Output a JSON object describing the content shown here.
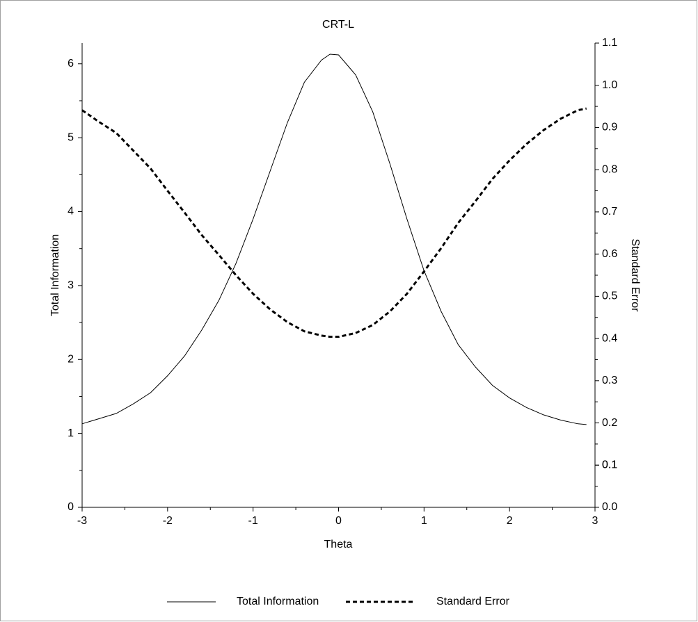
{
  "chart_data": {
    "type": "line",
    "title": "CRT-L",
    "x_label": "Theta",
    "y_label": "Total Information",
    "y2_label": "Standard Error",
    "x": [
      -3,
      -2.8,
      -2.6,
      -2.4,
      -2.2,
      -2,
      -1.8,
      -1.6,
      -1.4,
      -1.2,
      -1,
      -0.8,
      -0.6,
      -0.4,
      -0.2,
      -0.1,
      0,
      0.2,
      0.4,
      0.6,
      0.8,
      1,
      1.2,
      1.4,
      1.6,
      1.8,
      2,
      2.2,
      2.4,
      2.6,
      2.8,
      2.9
    ],
    "series": [
      {
        "name": "Total Information",
        "color": "#000000",
        "dashed": false,
        "axis": "y",
        "values": [
          1.13,
          1.2,
          1.27,
          1.4,
          1.55,
          1.78,
          2.05,
          2.4,
          2.8,
          3.3,
          3.9,
          4.55,
          5.2,
          5.75,
          6.05,
          6.13,
          6.12,
          5.85,
          5.35,
          4.65,
          3.9,
          3.2,
          2.65,
          2.2,
          1.9,
          1.65,
          1.48,
          1.35,
          1.25,
          1.18,
          1.13,
          1.12
        ]
      },
      {
        "name": "Standard Error",
        "color": "#000000",
        "dashed": true,
        "axis": "y2",
        "values": [
          0.941,
          0.913,
          0.887,
          0.845,
          0.803,
          0.75,
          0.698,
          0.645,
          0.598,
          0.55,
          0.506,
          0.469,
          0.439,
          0.417,
          0.407,
          0.404,
          0.404,
          0.413,
          0.432,
          0.464,
          0.506,
          0.559,
          0.614,
          0.674,
          0.725,
          0.778,
          0.822,
          0.861,
          0.894,
          0.921,
          0.941,
          0.945
        ]
      }
    ],
    "xlim": [
      -3,
      3
    ],
    "xticks": [
      -3,
      -2,
      -1,
      0,
      1,
      2,
      3
    ],
    "ylim": [
      0,
      6.28
    ],
    "yticks": [
      0,
      1,
      2,
      3,
      4,
      5,
      6
    ],
    "y2lim": [
      0,
      1.1
    ],
    "y2ticks": [
      {
        "value": 0,
        "label": "0.0"
      },
      0.1,
      0.2,
      0.3,
      0.4,
      0.5,
      0.6,
      0.7,
      0.8,
      0.9,
      {
        "value": 1,
        "label": "1.0"
      },
      0.1,
      1.1
    ],
    "legend": "bottom"
  }
}
